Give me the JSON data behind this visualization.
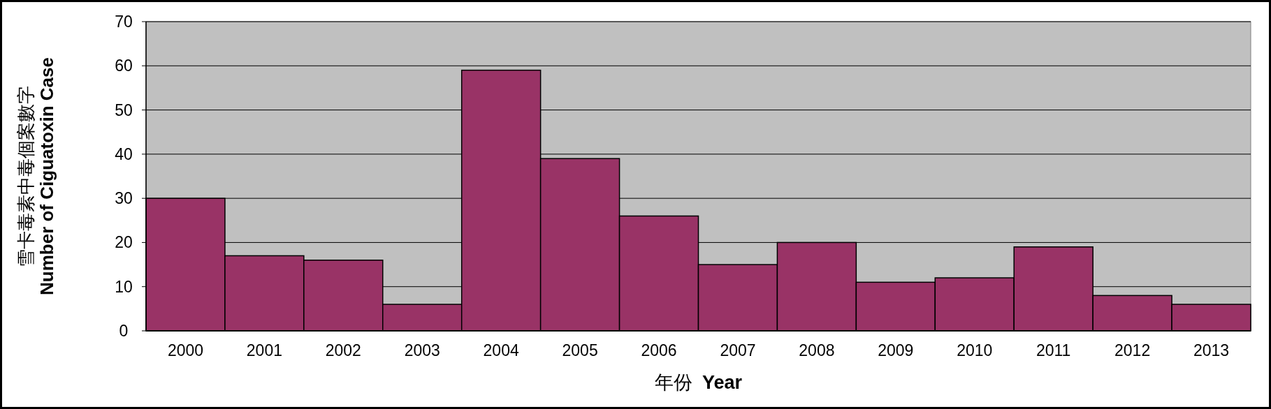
{
  "chart_data": {
    "type": "bar",
    "xlabel": "年份 **Year**",
    "ylabel": "雪卡毒素中毒個案數字 **Number of Ciguatoxin Case**",
    "categories": [
      "2000",
      "2001",
      "2002",
      "2003",
      "2004",
      "2005",
      "2006",
      "2007",
      "2008",
      "2009",
      "2010",
      "2011",
      "2012",
      "2013"
    ],
    "values": [
      30,
      17,
      16,
      6,
      59,
      39,
      26,
      15,
      20,
      11,
      12,
      19,
      8,
      6
    ],
    "color": "#993366",
    "ylim": [
      0,
      70
    ],
    "yticks": [
      0,
      10,
      20,
      30,
      40,
      50,
      60,
      70
    ],
    "grid": "y"
  }
}
